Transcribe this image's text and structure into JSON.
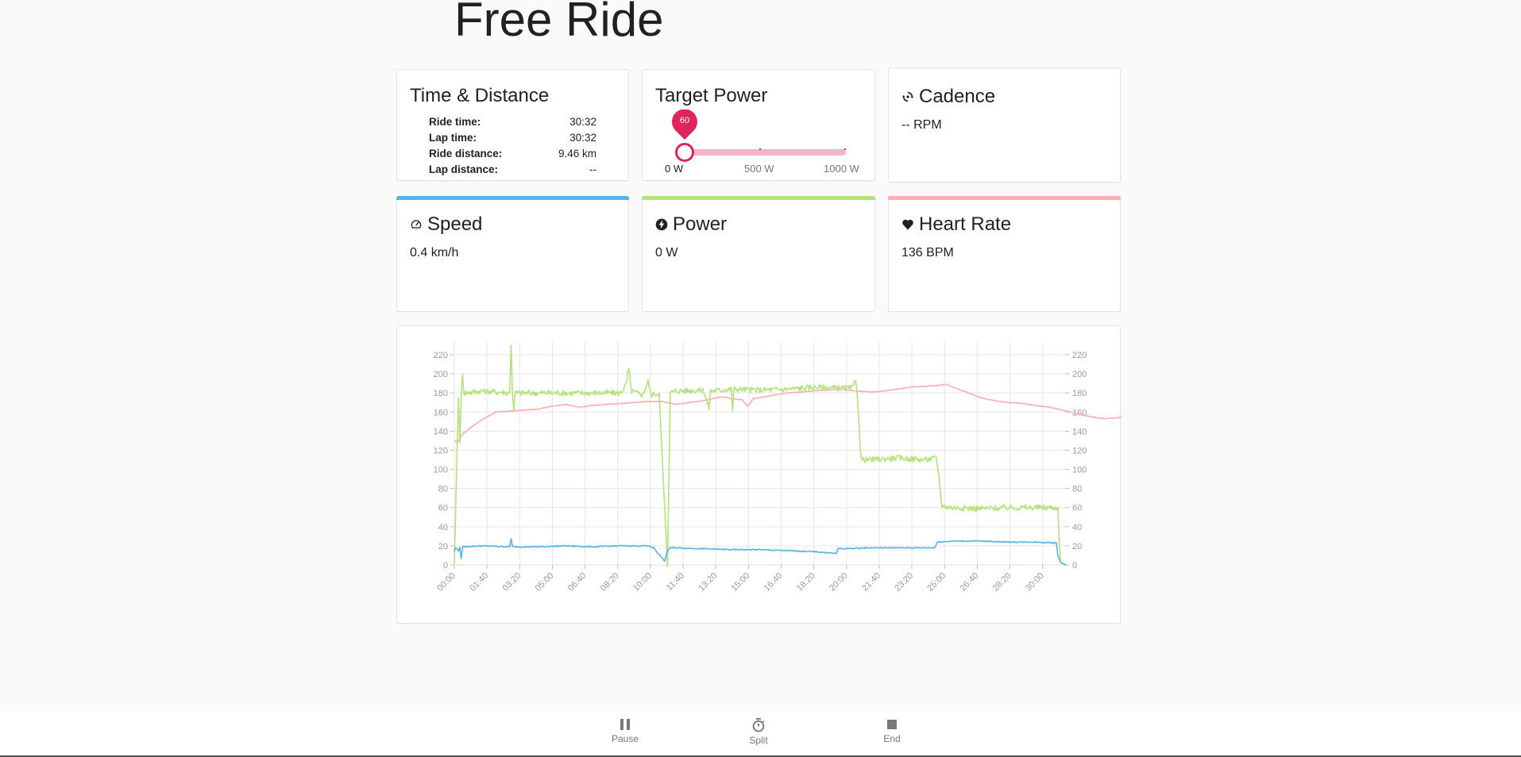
{
  "page": {
    "title": "Free Ride"
  },
  "time_distance": {
    "title": "Time & Distance",
    "rows": [
      {
        "label": "Ride time:",
        "value": "30:32"
      },
      {
        "label": "Lap time:",
        "value": "30:32"
      },
      {
        "label": "Ride distance:",
        "value": "9.46 km"
      },
      {
        "label": "Lap distance:",
        "value": "--"
      }
    ]
  },
  "target_power": {
    "title": "Target Power",
    "value": "60",
    "min_label": "0 W",
    "mid_label": "500 W",
    "max_label": "1000 W",
    "accent": "#e0245e"
  },
  "cadence": {
    "title": "Cadence",
    "value": "-- RPM",
    "icon": "cadence-icon"
  },
  "speed": {
    "title": "Speed",
    "value": "0.4 km/h",
    "icon": "speedometer-icon",
    "color": "#56b4e9"
  },
  "power": {
    "title": "Power",
    "value": "0 W",
    "icon": "lightning-bolt-icon",
    "color": "#b2e37c"
  },
  "heart_rate": {
    "title": "Heart Rate",
    "value": "136 BPM",
    "icon": "heart-icon",
    "color": "#ffadad"
  },
  "controls": {
    "pause": {
      "label": "Pause",
      "icon": "pause-icon"
    },
    "split": {
      "label": "Split",
      "icon": "stopwatch-icon"
    },
    "end": {
      "label": "End",
      "icon": "stop-icon"
    }
  },
  "chart_data": {
    "type": "line",
    "title": "",
    "xlabel": "",
    "ylabel": "",
    "ylim": [
      0,
      220
    ],
    "y_ticks": [
      0,
      20,
      40,
      60,
      80,
      100,
      120,
      140,
      160,
      180,
      200,
      220
    ],
    "x_ticks": [
      "00:00",
      "01:40",
      "03:20",
      "05:00",
      "06:40",
      "08:20",
      "10:00",
      "11:40",
      "13:20",
      "15:00",
      "16:40",
      "18:20",
      "20:00",
      "21:40",
      "23:20",
      "25:00",
      "26:40",
      "28:20",
      "30:00"
    ],
    "x_tick_seconds": [
      0,
      100,
      200,
      300,
      400,
      500,
      600,
      700,
      800,
      900,
      1000,
      1100,
      1200,
      1300,
      1400,
      1500,
      1600,
      1700,
      1800
    ],
    "x_range_seconds": [
      0,
      1872
    ],
    "grid": true,
    "legend": null,
    "series": [
      {
        "name": "Heart Rate",
        "color": "#ffadad",
        "points": [
          [
            0,
            130
          ],
          [
            10,
            128
          ],
          [
            30,
            137
          ],
          [
            60,
            144
          ],
          [
            100,
            152
          ],
          [
            150,
            160
          ],
          [
            200,
            161
          ],
          [
            250,
            162
          ],
          [
            300,
            163
          ],
          [
            350,
            166
          ],
          [
            400,
            168
          ],
          [
            450,
            165
          ],
          [
            500,
            167
          ],
          [
            600,
            169
          ],
          [
            650,
            170
          ],
          [
            700,
            171
          ],
          [
            750,
            171
          ],
          [
            800,
            168
          ],
          [
            850,
            170
          ],
          [
            900,
            172
          ],
          [
            970,
            176
          ],
          [
            1000,
            174
          ],
          [
            1040,
            173
          ],
          [
            1060,
            166
          ],
          [
            1080,
            174
          ],
          [
            1120,
            176
          ],
          [
            1200,
            180
          ],
          [
            1300,
            182
          ],
          [
            1400,
            184
          ],
          [
            1450,
            182
          ],
          [
            1500,
            181
          ],
          [
            1550,
            182
          ],
          [
            1600,
            184
          ],
          [
            1650,
            186
          ],
          [
            1700,
            187
          ],
          [
            1750,
            188
          ],
          [
            1780,
            189
          ],
          [
            1800,
            186
          ],
          [
            1850,
            181
          ],
          [
            1900,
            175
          ],
          [
            1950,
            172
          ],
          [
            2000,
            170
          ],
          [
            2050,
            169
          ],
          [
            2100,
            167
          ],
          [
            2150,
            165
          ],
          [
            2200,
            162
          ],
          [
            2250,
            158
          ],
          [
            2300,
            155
          ],
          [
            2350,
            153
          ],
          [
            2400,
            154
          ],
          [
            2450,
            156
          ],
          [
            2480,
            153
          ],
          [
            2490,
            149
          ],
          [
            2500,
            144
          ],
          [
            2520,
            136
          ]
        ]
      },
      {
        "name": "Power",
        "color": "#b2e37c",
        "points": [
          [
            0,
            0
          ],
          [
            10,
            120
          ],
          [
            15,
            175
          ],
          [
            20,
            128
          ],
          [
            25,
            178
          ],
          [
            30,
            198
          ],
          [
            35,
            180
          ],
          [
            100,
            182
          ],
          [
            200,
            180
          ],
          [
            205,
            230
          ],
          [
            210,
            180
          ],
          [
            215,
            163
          ],
          [
            220,
            180
          ],
          [
            300,
            180
          ],
          [
            400,
            180
          ],
          [
            500,
            180
          ],
          [
            600,
            180
          ],
          [
            620,
            188
          ],
          [
            630,
            205
          ],
          [
            640,
            182
          ],
          [
            680,
            178
          ],
          [
            700,
            192
          ],
          [
            710,
            178
          ],
          [
            740,
            180
          ],
          [
            770,
            -2
          ],
          [
            780,
            180
          ],
          [
            800,
            182
          ],
          [
            900,
            183
          ],
          [
            920,
            164
          ],
          [
            925,
            182
          ],
          [
            1000,
            184
          ],
          [
            1005,
            162
          ],
          [
            1010,
            184
          ],
          [
            1100,
            183
          ],
          [
            1200,
            184
          ],
          [
            1300,
            186
          ],
          [
            1400,
            185
          ],
          [
            1440,
            185
          ],
          [
            1450,
            195
          ],
          [
            1455,
            180
          ],
          [
            1465,
            130
          ],
          [
            1470,
            110
          ],
          [
            1500,
            110
          ],
          [
            1600,
            112
          ],
          [
            1700,
            110
          ],
          [
            1740,
            112
          ],
          [
            1750,
            95
          ],
          [
            1760,
            62
          ],
          [
            1800,
            60
          ],
          [
            1900,
            59
          ],
          [
            2000,
            60
          ],
          [
            2100,
            60
          ],
          [
            2180,
            60
          ],
          [
            2185,
            25
          ],
          [
            2190,
            2
          ],
          [
            2210,
            0
          ]
        ]
      },
      {
        "name": "Speed",
        "color": "#56b4e9",
        "points": [
          [
            0,
            14
          ],
          [
            5,
            18
          ],
          [
            15,
            15
          ],
          [
            20,
            18
          ],
          [
            25,
            7
          ],
          [
            30,
            19
          ],
          [
            100,
            20
          ],
          [
            200,
            19
          ],
          [
            205,
            28
          ],
          [
            210,
            19
          ],
          [
            300,
            19
          ],
          [
            400,
            20
          ],
          [
            500,
            19
          ],
          [
            600,
            20
          ],
          [
            700,
            20
          ],
          [
            720,
            18
          ],
          [
            760,
            4
          ],
          [
            770,
            15
          ],
          [
            780,
            18
          ],
          [
            800,
            18
          ],
          [
            900,
            17
          ],
          [
            1000,
            16
          ],
          [
            1100,
            16
          ],
          [
            1200,
            15
          ],
          [
            1300,
            14
          ],
          [
            1380,
            12
          ],
          [
            1385,
            17
          ],
          [
            1400,
            17
          ],
          [
            1500,
            18
          ],
          [
            1600,
            18
          ],
          [
            1700,
            18
          ],
          [
            1735,
            18
          ],
          [
            1745,
            24
          ],
          [
            1800,
            25
          ],
          [
            1900,
            25
          ],
          [
            2000,
            24
          ],
          [
            2100,
            24
          ],
          [
            2175,
            23
          ],
          [
            2180,
            10
          ],
          [
            2190,
            3
          ],
          [
            2210,
            0
          ]
        ]
      }
    ]
  }
}
